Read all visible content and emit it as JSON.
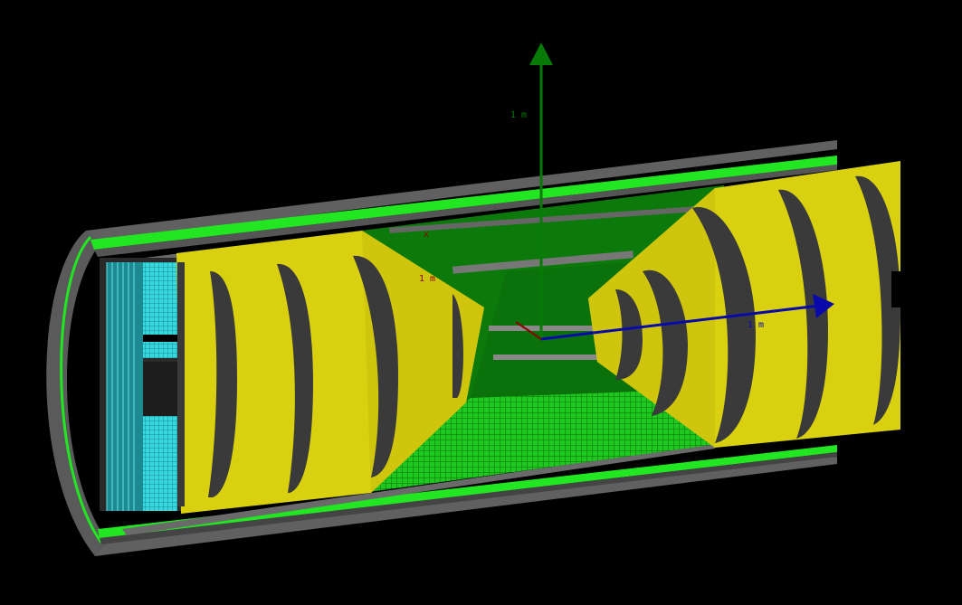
{
  "viewer": {
    "background": "#000000",
    "colors": {
      "shell_gray": "#5f5f5f",
      "shell_dark": "#3a3a3a",
      "green": "#22e622",
      "green_dark": "#0a7a0a",
      "yellow": "#d9d010",
      "yellow_dark": "#8e8808",
      "cyan": "#30d8e0",
      "axis_y": "#087a08",
      "axis_x": "#0a0aaa",
      "axis_z": "#8a0000"
    },
    "axes": {
      "y_label": "1 m",
      "x_label": "1 m",
      "z_label": "1 m",
      "z_tick": "x"
    }
  }
}
